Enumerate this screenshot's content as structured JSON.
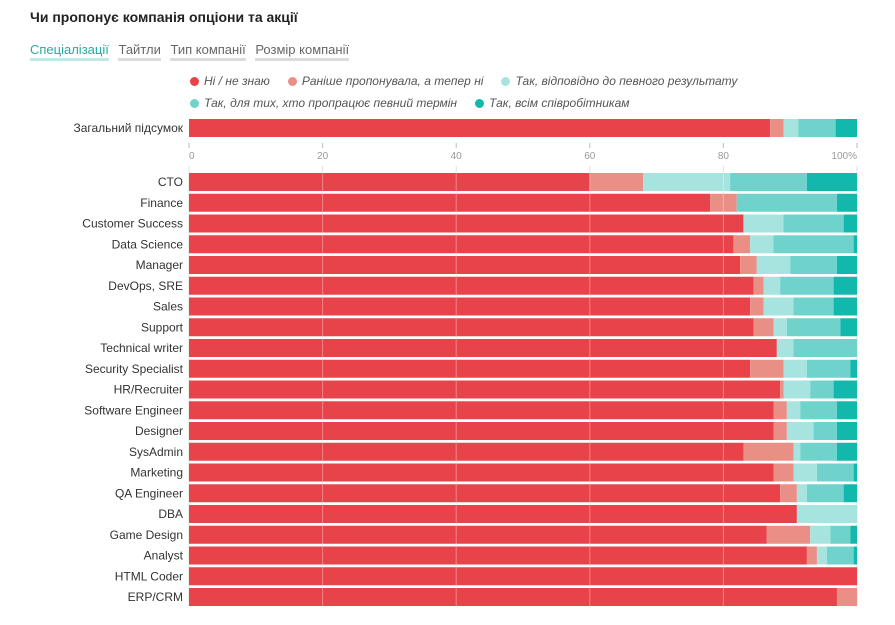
{
  "title": "Чи пропонує компанія опціони та акції",
  "tabs": [
    {
      "label": "Спеціалізації",
      "active": true
    },
    {
      "label": "Тайтли",
      "active": false
    },
    {
      "label": "Тип компанії",
      "active": false
    },
    {
      "label": "Розмір компанії",
      "active": false
    }
  ],
  "chart_data": {
    "type": "bar",
    "orientation": "horizontal",
    "stacked": true,
    "series": [
      {
        "name": "Ні / не знаю",
        "color": "#e8434b"
      },
      {
        "name": "Раніше пропонувала, а тепер ні",
        "color": "#ea8f86"
      },
      {
        "name": "Так, відповідно до певного результату",
        "color": "#a7e4df"
      },
      {
        "name": "Так, для тих, хто пропрацює певний термін",
        "color": "#6fd3cc"
      },
      {
        "name": "Так, всім співробітникам",
        "color": "#13b8ad"
      }
    ],
    "total": {
      "label": "Загальний підсумок",
      "values": [
        87,
        2,
        2.2,
        5.6,
        3.2
      ]
    },
    "categories": [
      "CTO",
      "Finance",
      "Customer Success",
      "Data Science",
      "Manager",
      "DevOps, SRE",
      "Sales",
      "Support",
      "Technical writer",
      "Security Specialist",
      "HR/Recruiter",
      "Software Engineer",
      "Designer",
      "SysAdmin",
      "Marketing",
      "QA Engineer",
      "DBA",
      "Game Design",
      "Analyst",
      "HTML Coder",
      "ERP/CRM"
    ],
    "rows": [
      [
        60,
        8,
        13,
        11.5,
        7.5
      ],
      [
        78,
        4,
        0,
        15,
        3
      ],
      [
        83,
        0,
        6,
        9,
        2
      ],
      [
        81.5,
        2.5,
        3.5,
        12,
        0.5
      ],
      [
        82.5,
        2.5,
        5,
        7,
        3
      ],
      [
        84.5,
        1.5,
        2.5,
        8,
        3.5
      ],
      [
        84,
        2,
        4.5,
        6,
        3.5
      ],
      [
        84.5,
        3,
        2,
        8,
        2.5
      ],
      [
        88,
        0,
        2.5,
        9.5,
        0
      ],
      [
        84,
        5,
        3.5,
        6.5,
        1
      ],
      [
        88.5,
        0.5,
        4,
        3.5,
        3.5
      ],
      [
        87.5,
        2,
        2,
        5.5,
        3
      ],
      [
        87.5,
        2,
        4,
        3.5,
        3
      ],
      [
        83,
        7.5,
        1,
        5.5,
        3
      ],
      [
        87.5,
        3,
        3.5,
        5.5,
        0.5
      ],
      [
        88.5,
        2.5,
        1.5,
        5.5,
        2
      ],
      [
        91,
        0,
        9,
        0,
        0
      ],
      [
        86.5,
        6.5,
        3,
        3,
        1
      ],
      [
        92.5,
        1.5,
        1.5,
        4,
        0.5
      ],
      [
        100,
        0,
        0,
        0,
        0
      ],
      [
        97,
        3,
        0,
        0,
        0
      ]
    ],
    "xaxis": {
      "min": 0,
      "max": 100,
      "ticks": [
        "0",
        "20",
        "40",
        "60",
        "80",
        "100%"
      ]
    },
    "legend_position": "top",
    "grid": true
  }
}
